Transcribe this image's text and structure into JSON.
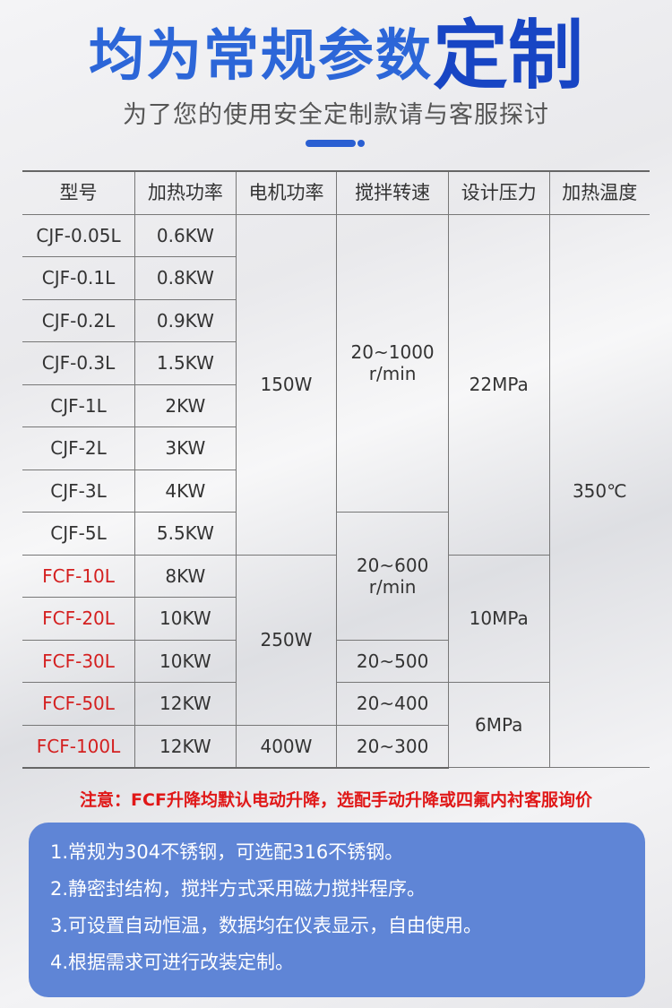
{
  "header": {
    "title_main": "均为常规参数",
    "title_emph": "定制",
    "subtitle": "为了您的使用安全定制款请与客服探讨"
  },
  "colors": {
    "accent": "#2a5fd2",
    "highlight_model": "#d42020",
    "info_box": "#5f85d6"
  },
  "table": {
    "headers": [
      "型号",
      "加热功率",
      "电机功率",
      "搅拌转速",
      "设计压力",
      "加热温度"
    ],
    "rows": [
      {
        "model": "CJF-0.05L",
        "heat": "0.6KW",
        "red": false
      },
      {
        "model": "CJF-0.1L",
        "heat": "0.8KW",
        "red": false
      },
      {
        "model": "CJF-0.2L",
        "heat": "0.9KW",
        "red": false
      },
      {
        "model": "CJF-0.3L",
        "heat": "1.5KW",
        "red": false
      },
      {
        "model": "CJF-1L",
        "heat": "2KW",
        "red": false
      },
      {
        "model": "CJF-2L",
        "heat": "3KW",
        "red": false
      },
      {
        "model": "CJF-3L",
        "heat": "4KW",
        "red": false
      },
      {
        "model": "CJF-5L",
        "heat": "5.5KW",
        "red": false
      },
      {
        "model": "FCF-10L",
        "heat": "8KW",
        "red": true
      },
      {
        "model": "FCF-20L",
        "heat": "10KW",
        "red": true
      },
      {
        "model": "FCF-30L",
        "heat": "10KW",
        "red": true
      },
      {
        "model": "FCF-50L",
        "heat": "12KW",
        "red": true
      },
      {
        "model": "FCF-100L",
        "heat": "12KW",
        "red": true
      }
    ],
    "motor": [
      "150W",
      "250W",
      "400W"
    ],
    "speed": [
      "20~1000\nr/min",
      "20~600\nr/min",
      "20~500",
      "20~400",
      "20~300"
    ],
    "pressure": [
      "22MPa",
      "10MPa",
      "6MPa"
    ],
    "temperature": "350℃"
  },
  "note": "注意：FCF升降均默认电动升降，选配手动升降或四氟内衬客服询价",
  "features": [
    "1.常规为304不锈钢，可选配316不锈钢。",
    "2.静密封结构，搅拌方式采用磁力搅拌程序。",
    "3.可设置自动恒温，数据均在仪表显示，自由使用。",
    "4.根据需求可进行改装定制。"
  ]
}
